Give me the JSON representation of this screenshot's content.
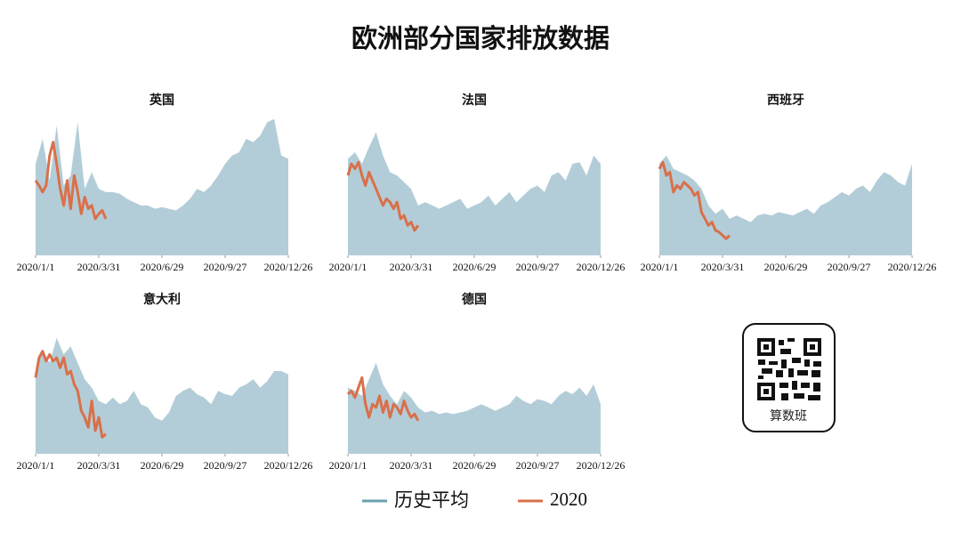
{
  "title": "欧洲部分国家排放数据",
  "qr_label": "算数班",
  "chart_data": [
    {
      "type": "line",
      "title": "英国",
      "xlim": [
        0,
        360
      ],
      "ylim": [
        0,
        100
      ],
      "xticks": [
        {
          "value": 0,
          "label": "2020/1/1"
        },
        {
          "value": 90,
          "label": "2020/3/31"
        },
        {
          "value": 180,
          "label": "2020/6/29"
        },
        {
          "value": 270,
          "label": "2020/9/27"
        },
        {
          "value": 360,
          "label": "2020/12/26"
        }
      ],
      "series": [
        {
          "name": "历史平均",
          "color": "#b3cdd8",
          "fill": true,
          "x": [
            0,
            10,
            20,
            30,
            40,
            50,
            60,
            70,
            80,
            90,
            100,
            110,
            120,
            130,
            140,
            150,
            160,
            170,
            180,
            190,
            200,
            210,
            220,
            230,
            240,
            250,
            260,
            270,
            280,
            290,
            300,
            310,
            320,
            330,
            340,
            350,
            360
          ],
          "values": [
            55,
            70,
            45,
            78,
            42,
            48,
            80,
            40,
            50,
            40,
            38,
            38,
            37,
            34,
            32,
            30,
            30,
            28,
            29,
            28,
            27,
            30,
            34,
            40,
            38,
            42,
            48,
            55,
            60,
            62,
            70,
            68,
            72,
            80,
            82,
            60,
            58
          ]
        },
        {
          "name": "2020",
          "color": "#d9704a",
          "fill": false,
          "x": [
            0,
            5,
            10,
            15,
            20,
            25,
            30,
            35,
            40,
            45,
            50,
            55,
            60,
            65,
            70,
            75,
            80,
            85,
            90,
            95,
            100
          ],
          "values": [
            45,
            42,
            38,
            42,
            60,
            68,
            55,
            40,
            30,
            45,
            28,
            48,
            38,
            25,
            35,
            28,
            30,
            22,
            25,
            27,
            22
          ]
        }
      ]
    },
    {
      "type": "line",
      "title": "法国",
      "xlim": [
        0,
        360
      ],
      "ylim": [
        0,
        100
      ],
      "xticks": [
        {
          "value": 0,
          "label": "2020/1/1"
        },
        {
          "value": 90,
          "label": "2020/3/31"
        },
        {
          "value": 180,
          "label": "2020/6/29"
        },
        {
          "value": 270,
          "label": "2020/9/27"
        },
        {
          "value": 360,
          "label": "2020/12/26"
        }
      ],
      "series": [
        {
          "name": "历史平均",
          "color": "#b3cdd8",
          "fill": true,
          "x": [
            0,
            10,
            20,
            30,
            40,
            50,
            60,
            70,
            80,
            90,
            100,
            110,
            120,
            130,
            140,
            150,
            160,
            170,
            180,
            190,
            200,
            210,
            220,
            230,
            240,
            250,
            260,
            270,
            280,
            290,
            300,
            310,
            320,
            330,
            340,
            350,
            360
          ],
          "values": [
            58,
            62,
            55,
            65,
            74,
            60,
            50,
            48,
            44,
            40,
            30,
            32,
            30,
            28,
            30,
            32,
            34,
            28,
            30,
            32,
            36,
            30,
            34,
            38,
            32,
            36,
            40,
            42,
            38,
            48,
            50,
            45,
            55,
            56,
            48,
            60,
            55
          ]
        },
        {
          "name": "2020",
          "color": "#d9704a",
          "fill": false,
          "x": [
            0,
            5,
            10,
            15,
            20,
            25,
            30,
            35,
            40,
            45,
            50,
            55,
            60,
            65,
            70,
            75,
            80,
            85,
            90,
            95,
            100
          ],
          "values": [
            48,
            55,
            52,
            56,
            48,
            42,
            50,
            45,
            40,
            35,
            30,
            34,
            32,
            28,
            32,
            22,
            24,
            18,
            20,
            15,
            18
          ]
        }
      ]
    },
    {
      "type": "line",
      "title": "西班牙",
      "xlim": [
        0,
        360
      ],
      "ylim": [
        0,
        100
      ],
      "xticks": [
        {
          "value": 0,
          "label": "2020/1/1"
        },
        {
          "value": 90,
          "label": "2020/3/31"
        },
        {
          "value": 180,
          "label": "2020/6/29"
        },
        {
          "value": 270,
          "label": "2020/9/27"
        },
        {
          "value": 360,
          "label": "2020/12/26"
        }
      ],
      "series": [
        {
          "name": "历史平均",
          "color": "#b3cdd8",
          "fill": true,
          "x": [
            0,
            10,
            20,
            30,
            40,
            50,
            60,
            70,
            80,
            90,
            100,
            110,
            120,
            130,
            140,
            150,
            160,
            170,
            180,
            190,
            200,
            210,
            220,
            230,
            240,
            250,
            260,
            270,
            280,
            290,
            300,
            310,
            320,
            330,
            340,
            350,
            360
          ],
          "values": [
            55,
            60,
            52,
            50,
            48,
            45,
            40,
            30,
            25,
            28,
            22,
            24,
            22,
            20,
            24,
            25,
            24,
            26,
            25,
            24,
            26,
            28,
            25,
            30,
            32,
            35,
            38,
            36,
            40,
            42,
            38,
            45,
            50,
            48,
            44,
            42,
            55
          ]
        },
        {
          "name": "2020",
          "color": "#d9704a",
          "fill": false,
          "x": [
            0,
            5,
            10,
            15,
            20,
            25,
            30,
            35,
            40,
            45,
            50,
            55,
            60,
            65,
            70,
            75,
            80,
            85,
            90,
            95,
            100
          ],
          "values": [
            52,
            56,
            48,
            50,
            38,
            42,
            40,
            44,
            42,
            40,
            36,
            38,
            26,
            22,
            18,
            20,
            15,
            14,
            12,
            10,
            12
          ]
        }
      ]
    },
    {
      "type": "line",
      "title": "意大利",
      "xlim": [
        0,
        360
      ],
      "ylim": [
        0,
        100
      ],
      "xticks": [
        {
          "value": 0,
          "label": "2020/1/1"
        },
        {
          "value": 90,
          "label": "2020/3/31"
        },
        {
          "value": 180,
          "label": "2020/6/29"
        },
        {
          "value": 270,
          "label": "2020/9/27"
        },
        {
          "value": 360,
          "label": "2020/12/26"
        }
      ],
      "series": [
        {
          "name": "历史平均",
          "color": "#b3cdd8",
          "fill": true,
          "x": [
            0,
            10,
            20,
            30,
            40,
            50,
            60,
            70,
            80,
            90,
            100,
            110,
            120,
            130,
            140,
            150,
            160,
            170,
            180,
            190,
            200,
            210,
            220,
            230,
            240,
            250,
            260,
            270,
            280,
            290,
            300,
            310,
            320,
            330,
            340,
            350,
            360
          ],
          "values": [
            48,
            62,
            55,
            70,
            60,
            65,
            55,
            45,
            40,
            32,
            30,
            34,
            30,
            32,
            38,
            30,
            28,
            22,
            20,
            25,
            35,
            38,
            40,
            36,
            34,
            30,
            38,
            36,
            35,
            40,
            42,
            45,
            40,
            44,
            50,
            50,
            48
          ]
        },
        {
          "name": "2020",
          "color": "#d9704a",
          "fill": false,
          "x": [
            0,
            5,
            10,
            15,
            20,
            25,
            30,
            35,
            40,
            45,
            50,
            55,
            60,
            65,
            70,
            75,
            80,
            85,
            90,
            95,
            100
          ],
          "values": [
            46,
            58,
            62,
            56,
            60,
            56,
            58,
            52,
            58,
            48,
            50,
            42,
            38,
            26,
            22,
            16,
            32,
            14,
            22,
            10,
            12
          ]
        }
      ]
    },
    {
      "type": "line",
      "title": "德国",
      "xlim": [
        0,
        360
      ],
      "ylim": [
        0,
        100
      ],
      "xticks": [
        {
          "value": 0,
          "label": "2020/1/1"
        },
        {
          "value": 90,
          "label": "2020/3/31"
        },
        {
          "value": 180,
          "label": "2020/6/29"
        },
        {
          "value": 270,
          "label": "2020/9/27"
        },
        {
          "value": 360,
          "label": "2020/12/26"
        }
      ],
      "series": [
        {
          "name": "历史平均",
          "color": "#b3cdd8",
          "fill": true,
          "x": [
            0,
            10,
            20,
            30,
            40,
            50,
            60,
            70,
            80,
            90,
            100,
            110,
            120,
            130,
            140,
            150,
            160,
            170,
            180,
            190,
            200,
            210,
            220,
            230,
            240,
            250,
            260,
            270,
            280,
            290,
            300,
            310,
            320,
            330,
            340,
            350,
            360
          ],
          "values": [
            40,
            38,
            35,
            45,
            55,
            42,
            35,
            30,
            38,
            34,
            28,
            25,
            26,
            24,
            25,
            24,
            25,
            26,
            28,
            30,
            28,
            26,
            28,
            30,
            35,
            32,
            30,
            33,
            32,
            30,
            35,
            38,
            36,
            40,
            35,
            42,
            30
          ]
        },
        {
          "name": "2020",
          "color": "#d9704a",
          "fill": false,
          "x": [
            0,
            5,
            10,
            15,
            20,
            25,
            30,
            35,
            40,
            45,
            50,
            55,
            60,
            65,
            70,
            75,
            80,
            85,
            90,
            95,
            100
          ],
          "values": [
            36,
            38,
            34,
            40,
            46,
            30,
            22,
            30,
            28,
            35,
            25,
            32,
            22,
            30,
            28,
            24,
            32,
            26,
            22,
            24,
            20
          ]
        }
      ]
    }
  ]
}
